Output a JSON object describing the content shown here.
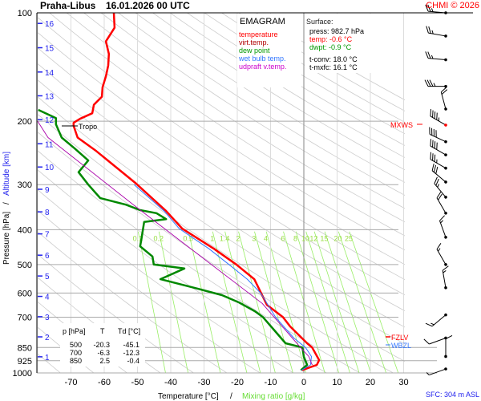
{
  "title": {
    "station": "Praha-Libus",
    "datetime": "16.01.2026 00 UTC"
  },
  "copyright": "CHMI © 2026",
  "legend": {
    "heading": "EMAGRAM",
    "items": [
      {
        "label": "temperature",
        "color": "#ff0000"
      },
      {
        "label": "virt.temp.",
        "color": "#b00000"
      },
      {
        "label": "dew point",
        "color": "#009900"
      },
      {
        "label": "wet bulb temp.",
        "color": "#3377ff"
      },
      {
        "label": "udpraft v.temp.",
        "color": "#cc00cc"
      }
    ]
  },
  "surface": {
    "heading": "Surface:",
    "press": "press: 982.7 hPa",
    "temp": "temp: -0.6 °C",
    "dwpt": "dwpt: -0.9 °C",
    "tconv": "t-conv: 18.0 °C",
    "tmxfc": "t-mxfc: 16.1 °C"
  },
  "table": {
    "headers": [
      "p [hPa]",
      "T",
      "Td [°C]"
    ],
    "rows": [
      [
        "500",
        "-20.3",
        "-45.1"
      ],
      [
        "700",
        "-6.3",
        "-12.3"
      ],
      [
        "850",
        "2.5",
        "-0.4"
      ]
    ]
  },
  "annotations": {
    "tropo": "Tropo",
    "mxws": "MXWS",
    "fzlv": "FZLV",
    "wbzl": "WBZL",
    "sfc": "SFC: 304 m ASL"
  },
  "chart_data": {
    "type": "line",
    "title": "Praha-Libus 16.01.2026 00 UTC",
    "xlabel": "Temperature [°C]",
    "xlabel2": "Mixing ratio [g/kg]",
    "ylabel": "Pressure [hPa]",
    "ylabel2": "Altitude [km]",
    "xlim": [
      -80,
      30
    ],
    "ylim": [
      1000,
      100
    ],
    "yscale": "log",
    "x_ticks": [
      -70,
      -60,
      -50,
      -40,
      -30,
      -20,
      -10,
      0,
      10,
      20,
      30
    ],
    "y_ticks": [
      100,
      200,
      300,
      400,
      500,
      600,
      700,
      850,
      925,
      1000
    ],
    "altitude_ticks_km": [
      1,
      2,
      3,
      4,
      5,
      6,
      7,
      8,
      9,
      10,
      11,
      12,
      13,
      14,
      15,
      16
    ],
    "altitude_tick_pressures": [
      902,
      794,
      698,
      613,
      538,
      471,
      411,
      357,
      309,
      268,
      231,
      198,
      170,
      146,
      125,
      107
    ],
    "mixing_ratio_labels": [
      "0.1",
      "0.2",
      "0.5",
      "1",
      "1.4",
      "2",
      "3",
      "4",
      "6",
      "8",
      "10",
      "12",
      "15",
      "20",
      "25"
    ],
    "mixing_ratio_values": [
      0.1,
      0.2,
      0.5,
      1,
      1.4,
      2,
      3,
      4,
      6,
      8,
      10,
      12,
      15,
      20,
      25
    ],
    "series": [
      {
        "name": "temperature",
        "color": "#ff0000",
        "p": [
          100,
          110,
          120,
          130,
          140,
          150,
          161,
          171,
          180,
          190,
          197,
          202,
          206,
          222,
          242,
          298,
          355,
          397,
          452,
          500,
          549,
          647,
          700,
          743,
          827,
          850,
          921,
          950,
          982.7
        ],
        "t": [
          -57.1,
          -56.9,
          -59.5,
          -58.6,
          -58.8,
          -59.5,
          -60.5,
          -60.7,
          -63.1,
          -63.6,
          -67.3,
          -69.2,
          -69.2,
          -68,
          -62.4,
          -50.4,
          -41.4,
          -36.6,
          -27,
          -20.3,
          -14.9,
          -11.1,
          -6.3,
          -4.1,
          1,
          2.5,
          4.6,
          3.9,
          -0.6
        ]
      },
      {
        "name": "dew point",
        "color": "#008800",
        "p": [
          186,
          196,
          204,
          222,
          238,
          257,
          277,
          300,
          327,
          341,
          353,
          360,
          374,
          381,
          429,
          445,
          475,
          500,
          513,
          549,
          584,
          608,
          637,
          674,
          700,
          770,
          827,
          850,
          902,
          950,
          982.7
        ],
        "t": [
          -79.8,
          -74.5,
          -74.5,
          -72.8,
          -68.9,
          -64.8,
          -67.7,
          -64.8,
          -61.2,
          -53.5,
          -49.2,
          -44.3,
          -41.4,
          -48,
          -48.9,
          -49.2,
          -45.5,
          -45.1,
          -35.9,
          -43.1,
          -31.8,
          -24.6,
          -19.5,
          -14.7,
          -12.3,
          -8.4,
          -5.5,
          -0.4,
          0,
          1,
          -0.9
        ]
      },
      {
        "name": "wet bulb temp.",
        "color": "#3377ff",
        "p": [
          300,
          355,
          397,
          452,
          500,
          549,
          600,
          700,
          800,
          850,
          900,
          950,
          982.7
        ],
        "t": [
          -51,
          -42,
          -37.5,
          -28.5,
          -22.5,
          -17,
          -13,
          -8.5,
          -3,
          0.5,
          2.3,
          2,
          -0.7
        ]
      },
      {
        "name": "udpraft v.temp.",
        "color": "#aa00aa",
        "p": [
          200,
          222,
          346,
          641,
          850,
          900,
          950
        ],
        "t": [
          -80,
          -76.9,
          -50.4,
          -12.5,
          -1,
          1.5,
          2.5
        ]
      }
    ],
    "tropopause_hPa": 206,
    "freezing_level_hPa": 812,
    "wet_bulb_zero_hPa": 838,
    "winds": [
      {
        "p": 100,
        "dir": 275,
        "kt": 25
      },
      {
        "p": 116,
        "dir": 280,
        "kt": 25
      },
      {
        "p": 135,
        "dir": 275,
        "kt": 25
      },
      {
        "p": 160,
        "dir": 270,
        "kt": 35
      },
      {
        "p": 185,
        "dir": 345,
        "kt": 20
      },
      {
        "p": 205,
        "dir": 300,
        "kt": 45,
        "max": true
      },
      {
        "p": 228,
        "dir": 295,
        "kt": 40
      },
      {
        "p": 248,
        "dir": 300,
        "kt": 40
      },
      {
        "p": 270,
        "dir": 300,
        "kt": 35
      },
      {
        "p": 295,
        "dir": 310,
        "kt": 30
      },
      {
        "p": 325,
        "dir": 320,
        "kt": 25
      },
      {
        "p": 360,
        "dir": 330,
        "kt": 20
      },
      {
        "p": 420,
        "dir": 340,
        "kt": 15
      },
      {
        "p": 500,
        "dir": 330,
        "kt": 15
      },
      {
        "p": 580,
        "dir": 350,
        "kt": 15
      },
      {
        "p": 690,
        "dir": 230,
        "kt": 15
      },
      {
        "p": 800,
        "dir": 250,
        "kt": 10
      },
      {
        "p": 900,
        "dir": 0,
        "kt": 10
      },
      {
        "p": 975,
        "dir": 250,
        "kt": 5
      }
    ]
  }
}
